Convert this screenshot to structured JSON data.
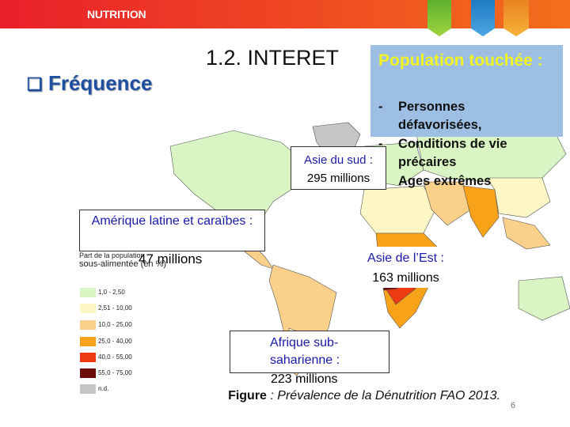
{
  "header": {
    "title": "NUTRITION",
    "tab_colors": [
      "#62b22f",
      "#2a82c8",
      "#ef921f"
    ],
    "bar_color": "#e9202a"
  },
  "slide": {
    "section_title": "Fréquence",
    "section_bullet_icon": "checkbox-square-icon",
    "heading": "1.2. INTERET",
    "population_box": {
      "title": "Population touchée :",
      "items": [
        "Personnes défavorisées,",
        "Conditions de vie précaires",
        "Ages extrêmes"
      ]
    },
    "callouts": {
      "asie_sud": {
        "label": "Asie du sud :",
        "value": "295 millions"
      },
      "amerique": {
        "label": "Amérique latine et caraïbes :",
        "value": "47 millions"
      },
      "asie_est": {
        "label": "Asie de l’Est :",
        "value": "163 millions"
      },
      "afrique": {
        "label": "Afrique sub-saharienne :",
        "value": "223 millions"
      }
    },
    "legend": {
      "title_line1": "Part de la population",
      "title_line2": "sous-alimentée (en %)",
      "items": [
        {
          "label": "1,0 - 2,50",
          "color": "#d9f5c4"
        },
        {
          "label": "2,51 - 10,00",
          "color": "#fdf7c6"
        },
        {
          "label": "10,0 - 25,00",
          "color": "#fbd08a"
        },
        {
          "label": "25,0 - 40,00",
          "color": "#f8a21a"
        },
        {
          "label": "40,0 - 55,00",
          "color": "#ee3a12"
        },
        {
          "label": "55,0 - 75,00",
          "color": "#6b0a0a"
        },
        {
          "label": "n.d.",
          "color": "#c6c6c6"
        }
      ]
    },
    "caption": {
      "prefix": "Figure",
      "text": " : Prévalence de la Dénutrition FAO 2013."
    },
    "page_number": "6"
  }
}
